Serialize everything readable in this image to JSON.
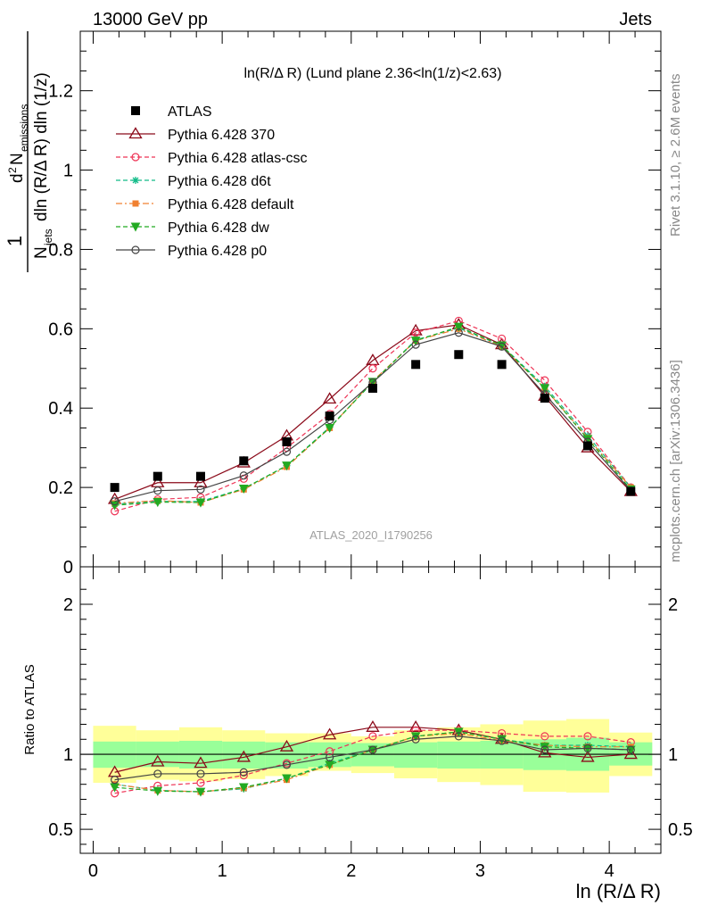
{
  "header": {
    "energy": "13000 GeV pp",
    "process": "Jets"
  },
  "side_text": {
    "rivet": "Rivet 3.1.10, ≥ 2.6M events",
    "source": "mcplots.cern.ch [arXiv:1306.3436]"
  },
  "colors": {
    "ratio_band_inner": "#99ff99",
    "ratio_band_outer": "#ffff99",
    "watermark": "#a0a0a0"
  },
  "chart_data": [
    {
      "type": "line",
      "title": "ln(R/Δ R) (Lund plane 2.36<ln(1/z)<2.63)",
      "analysis_label": "ATLAS_2020_I1790256",
      "ylabel": "1/N_jets d²N_emissions / dln(R/ΔR) dln(1/z)",
      "ylabel_parts": {
        "one": "1",
        "d2": "d",
        "two": "2",
        "N": "N",
        "emissions": "emissions",
        "Njets": "N",
        "jets": "jets",
        "dln": "dln (R/Δ R) dln (1/z)"
      },
      "xlim": [
        -0.1,
        4.4
      ],
      "ylim": [
        0,
        1.35
      ],
      "y_ticks": [
        0,
        0.2,
        0.4,
        0.6,
        0.8,
        1,
        1.2
      ],
      "y_tick_labels": [
        "0",
        "0.2",
        "0.4",
        "0.6",
        "0.8",
        "1",
        "1.2"
      ],
      "legend_position": "top-left",
      "x": [
        0.167,
        0.5,
        0.833,
        1.167,
        1.5,
        1.833,
        2.167,
        2.5,
        2.833,
        3.167,
        3.5,
        3.833,
        4.167
      ],
      "data": {
        "name": "ATLAS",
        "values": [
          0.2,
          0.228,
          0.228,
          0.267,
          0.315,
          0.38,
          0.45,
          0.51,
          0.535,
          0.51,
          0.425,
          0.305,
          0.19
        ]
      },
      "series": [
        {
          "name": "Pythia 6.428 370",
          "color": "#8b0a1a",
          "dash": "solid",
          "marker": "triangle-open",
          "values": [
            0.17,
            0.212,
            0.212,
            0.262,
            0.33,
            0.423,
            0.52,
            0.595,
            0.61,
            0.56,
            0.43,
            0.3,
            0.19
          ]
        },
        {
          "name": "Pythia 6.428 atlas-csc",
          "color": "#ee3355",
          "dash": "dashed",
          "marker": "circle-open",
          "values": [
            0.14,
            0.17,
            0.175,
            0.222,
            0.3,
            0.385,
            0.5,
            0.59,
            0.62,
            0.575,
            0.47,
            0.34,
            0.2
          ]
        },
        {
          "name": "Pythia 6.428 d6t",
          "color": "#11bb88",
          "dash": "dashed",
          "marker": "star",
          "values": [
            0.158,
            0.165,
            0.165,
            0.197,
            0.255,
            0.352,
            0.465,
            0.572,
            0.602,
            0.558,
            0.455,
            0.33,
            0.2
          ]
        },
        {
          "name": "Pythia 6.428 default",
          "color": "#f08030",
          "dash": "dashdot",
          "marker": "square",
          "values": [
            0.16,
            0.167,
            0.162,
            0.195,
            0.252,
            0.35,
            0.468,
            0.57,
            0.6,
            0.555,
            0.45,
            0.325,
            0.2
          ]
        },
        {
          "name": "Pythia 6.428 dw",
          "color": "#22aa22",
          "dash": "dashed",
          "marker": "triangle-down",
          "values": [
            0.155,
            0.163,
            0.162,
            0.197,
            0.255,
            0.35,
            0.466,
            0.57,
            0.605,
            0.558,
            0.45,
            0.322,
            0.195
          ]
        },
        {
          "name": "Pythia 6.428 p0",
          "color": "#444444",
          "dash": "solid",
          "marker": "circle-open",
          "values": [
            0.165,
            0.192,
            0.195,
            0.23,
            0.29,
            0.37,
            0.465,
            0.56,
            0.59,
            0.555,
            0.435,
            0.315,
            0.192
          ]
        }
      ]
    },
    {
      "type": "line",
      "title": "",
      "ylabel": "Ratio to ATLAS",
      "xlabel": "ln (R/Δ R)",
      "xlim": [
        -0.1,
        4.4
      ],
      "ylim": [
        0.34,
        2.25
      ],
      "x_ticks": [
        0,
        1,
        2,
        3,
        4
      ],
      "x_tick_labels": [
        "0",
        "1",
        "2",
        "3",
        "4"
      ],
      "y_ticks": [
        0.5,
        1,
        2
      ],
      "y_tick_labels": [
        "0.5",
        "1",
        "2"
      ],
      "bin_edges": [
        0,
        0.333,
        0.667,
        1.0,
        1.333,
        1.667,
        2.0,
        2.333,
        2.667,
        3.0,
        3.333,
        3.667,
        4.0,
        4.333
      ],
      "band_inner": {
        "low": [
          0.91,
          0.915,
          0.905,
          0.905,
          0.905,
          0.915,
          0.92,
          0.91,
          0.905,
          0.905,
          0.895,
          0.89,
          0.925
        ],
        "high": [
          1.085,
          1.085,
          1.09,
          1.085,
          1.08,
          1.08,
          1.075,
          1.08,
          1.085,
          1.09,
          1.1,
          1.11,
          1.08
        ]
      },
      "band_outer": {
        "low": [
          0.81,
          0.83,
          0.82,
          0.835,
          0.855,
          0.89,
          0.875,
          0.84,
          0.815,
          0.795,
          0.75,
          0.745,
          0.855
        ],
        "high": [
          1.19,
          1.16,
          1.18,
          1.16,
          1.14,
          1.14,
          1.12,
          1.16,
          1.18,
          1.2,
          1.225,
          1.235,
          1.145
        ]
      },
      "reference": 1.0,
      "series": [
        {
          "name": "Pythia 6.428 370",
          "values": [
            0.88,
            0.95,
            0.94,
            0.98,
            1.05,
            1.13,
            1.18,
            1.18,
            1.16,
            1.1,
            1.01,
            0.98,
            1.0
          ]
        },
        {
          "name": "Pythia 6.428 atlas-csc",
          "values": [
            0.74,
            0.79,
            0.81,
            0.86,
            0.94,
            1.02,
            1.12,
            1.16,
            1.16,
            1.14,
            1.12,
            1.12,
            1.08
          ]
        },
        {
          "name": "Pythia 6.428 d6t",
          "values": [
            0.8,
            0.76,
            0.75,
            0.77,
            0.84,
            0.94,
            1.03,
            1.12,
            1.15,
            1.1,
            1.06,
            1.06,
            1.05
          ]
        },
        {
          "name": "Pythia 6.428 default",
          "values": [
            0.8,
            0.76,
            0.75,
            0.775,
            0.83,
            0.93,
            1.03,
            1.12,
            1.14,
            1.09,
            1.06,
            1.05,
            1.05
          ]
        },
        {
          "name": "Pythia 6.428 dw",
          "values": [
            0.78,
            0.755,
            0.75,
            0.78,
            0.84,
            0.93,
            1.03,
            1.12,
            1.15,
            1.1,
            1.05,
            1.04,
            1.03
          ]
        },
        {
          "name": "Pythia 6.428 p0",
          "values": [
            0.83,
            0.87,
            0.87,
            0.88,
            0.93,
            0.98,
            1.03,
            1.1,
            1.12,
            1.09,
            1.03,
            1.04,
            1.03
          ]
        }
      ]
    }
  ]
}
